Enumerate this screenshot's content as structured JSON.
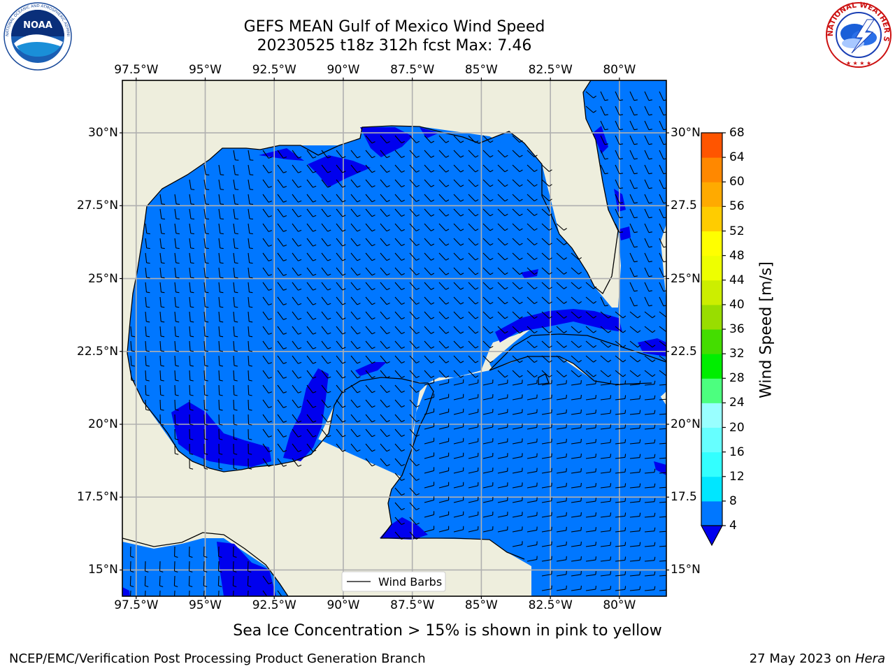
{
  "title": {
    "line1": "GEFS MEAN Gulf of Mexico Wind Speed",
    "line2": "20230525 t18z 312h fcst   Max: 7.46"
  },
  "logos": {
    "left": {
      "name": "NOAA",
      "text": "NOAA",
      "ring_text": "NATIONAL OCEANIC AND ATMOSPHERIC ADMINISTRATION · U.S. DEPARTMENT OF COMMERCE"
    },
    "right": {
      "name": "National Weather Service",
      "ring_text": "NATIONAL WEATHER SERVICE"
    }
  },
  "map": {
    "lon_labels": [
      "97.5°W",
      "95°W",
      "92.5°W",
      "90°W",
      "87.5°W",
      "85°W",
      "82.5°W",
      "80°W"
    ],
    "lon_values": [
      -97.5,
      -95,
      -92.5,
      -90,
      -87.5,
      -85,
      -82.5,
      -80
    ],
    "lat_labels_left": [
      "30°N",
      "27.5°N",
      "25°N",
      "22.5°N",
      "20°N",
      "17.5°N",
      "15°N"
    ],
    "lat_labels_right": [
      "30°N",
      "27.5",
      "25°N",
      "22.5",
      "20°N",
      "17.5",
      "15°N"
    ],
    "lat_values": [
      30,
      27.5,
      25,
      22.5,
      20,
      17.5,
      15
    ],
    "extent": {
      "lon": [
        -98,
        -78.3
      ],
      "lat": [
        14.1,
        31.8
      ]
    },
    "legend_label": "Wind Barbs",
    "colors": {
      "land": "#eeeedd",
      "ocean_4_8": "#0077ff",
      "ocean_below_4": "#0000ee",
      "grid": "#b0b0b0"
    }
  },
  "colorbar": {
    "label": "Wind Speed [m/s]",
    "ticks": [
      "68",
      "64",
      "60",
      "56",
      "52",
      "48",
      "44",
      "40",
      "36",
      "32",
      "28",
      "24",
      "20",
      "16",
      "12",
      "8",
      "4"
    ],
    "colors_bottom_to_top": [
      "#0077ff",
      "#00e6ff",
      "#33ffff",
      "#66ffff",
      "#99ffff",
      "#4cff7f",
      "#00ee00",
      "#44dd00",
      "#99dd00",
      "#ccee00",
      "#eeff00",
      "#ffff00",
      "#ffcc00",
      "#ffaa00",
      "#ff8800",
      "#ff5500",
      "#ff2200",
      "#ff0000"
    ],
    "under_color": "#0000ee"
  },
  "footer": {
    "sea_ice": "Sea Ice Concentration > 15% is shown in pink to yellow",
    "credit": "NCEP/EMC/Verification Post Processing Product Generation Branch",
    "date": "27 May 2023 on",
    "machine": "Hera"
  }
}
